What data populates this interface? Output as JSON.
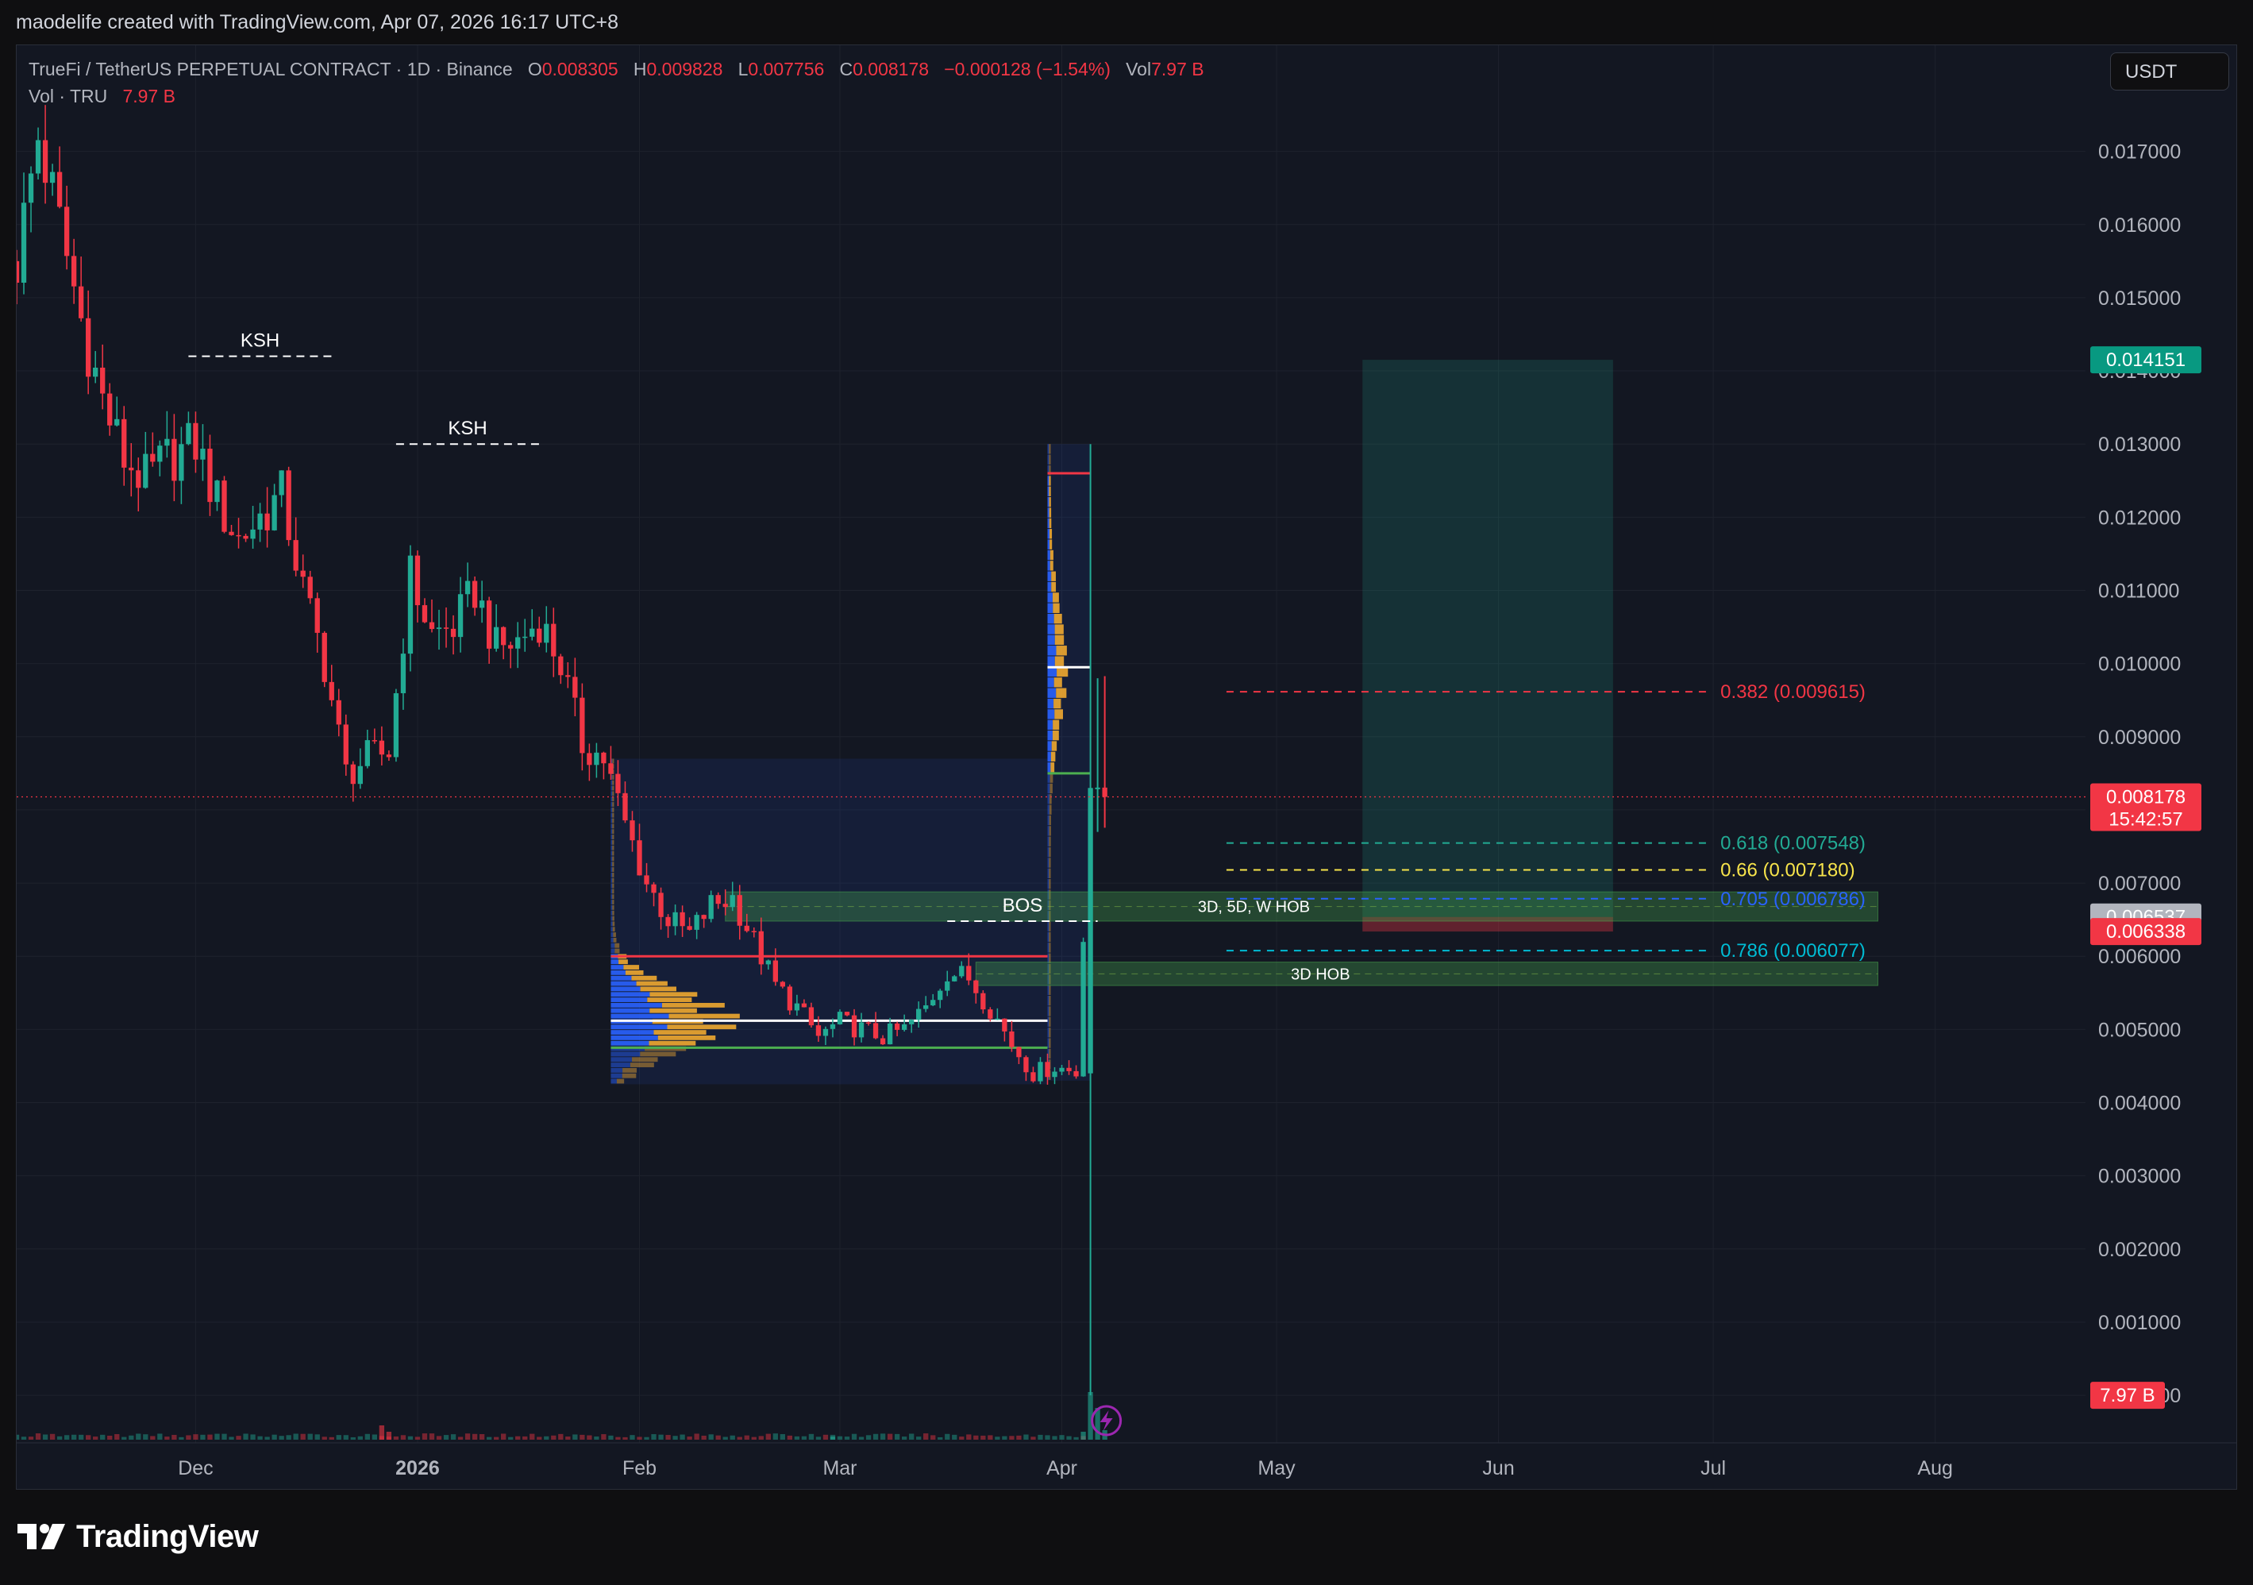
{
  "header": {
    "created_by": "maodelife created with TradingView.com, Apr 07, 2026 16:17 UTC+8"
  },
  "legend": {
    "symbol": "TrueFi / TetherUS PERPETUAL CONTRACT · 1D · Binance",
    "o_label": "O",
    "o_value": "0.008305",
    "h_label": "H",
    "h_value": "0.009828",
    "l_label": "L",
    "l_value": "0.007756",
    "c_label": "C",
    "c_value": "0.008178",
    "change": "−0.000128 (−1.54%)",
    "vol_label": "Vol",
    "vol_value": "7.97 B",
    "vol_series": "Vol · TRU",
    "vol_series_value": "7.97 B"
  },
  "currency_button": "USDT",
  "brand": {
    "name": "TradingView"
  },
  "colors": {
    "background": "#131722",
    "up": "#22ab94",
    "down": "#f23645",
    "grid": "#1e222d",
    "fib_382": "#f23645",
    "fib_618": "#22ab94",
    "fib_66": "#f7e44b",
    "fib_705": "#2962ff",
    "fib_786": "#00bcd4"
  },
  "chart_data": {
    "type": "candlestick",
    "symbol": "TrueFi / TetherUS PERPETUAL CONTRACT",
    "interval": "1D",
    "exchange": "Binance",
    "y_axis_ticks": [
      "0.017000",
      "0.016000",
      "0.015000",
      "0.014000",
      "0.013000",
      "0.012000",
      "0.011000",
      "0.010000",
      "0.009000",
      "0.008000",
      "0.007000",
      "0.006000",
      "0.005000",
      "0.004000",
      "0.003000",
      "0.002000",
      "0.001000",
      "0.000000"
    ],
    "y_axis_tick_values": [
      0.017,
      0.016,
      0.015,
      0.014,
      0.013,
      0.012,
      0.011,
      0.01,
      0.009,
      0.008,
      0.007,
      0.006,
      0.005,
      0.004,
      0.003,
      0.002,
      0.001,
      0.0
    ],
    "ylim": [
      -0.00065,
      0.01845
    ],
    "x_axis_ticks": [
      {
        "label": "Dec",
        "date": "2025-12-01"
      },
      {
        "label": "2026",
        "date": "2026-01-01"
      },
      {
        "label": "Feb",
        "date": "2026-02-01"
      },
      {
        "label": "Mar",
        "date": "2026-03-01"
      },
      {
        "label": "Apr",
        "date": "2026-04-01"
      },
      {
        "label": "May",
        "date": "2026-05-01"
      },
      {
        "label": "Jun",
        "date": "2026-06-01"
      },
      {
        "label": "Jul",
        "date": "2026-07-01"
      },
      {
        "label": "Aug",
        "date": "2026-08-01"
      }
    ],
    "xlim": [
      "2025-11-06",
      "2026-08-22"
    ],
    "price_path_close": [
      [
        "2025-11-06",
        0.0155
      ],
      [
        "2025-11-09",
        0.0172
      ],
      [
        "2025-11-12",
        0.016
      ],
      [
        "2025-11-15",
        0.0147
      ],
      [
        "2025-11-18",
        0.0136
      ],
      [
        "2025-11-21",
        0.0128
      ],
      [
        "2025-11-24",
        0.0125
      ],
      [
        "2025-11-27",
        0.0128
      ],
      [
        "2025-12-01",
        0.013
      ],
      [
        "2025-12-04",
        0.0122
      ],
      [
        "2025-12-07",
        0.0117
      ],
      [
        "2025-12-10",
        0.012
      ],
      [
        "2025-12-13",
        0.0123
      ],
      [
        "2025-12-16",
        0.011
      ],
      [
        "2025-12-19",
        0.01
      ],
      [
        "2025-12-22",
        0.0085
      ],
      [
        "2025-12-25",
        0.0087
      ],
      [
        "2025-12-28",
        0.0088
      ],
      [
        "2025-12-31",
        0.0112
      ],
      [
        "2026-01-03",
        0.0104
      ],
      [
        "2026-01-06",
        0.0105
      ],
      [
        "2026-01-09",
        0.011
      ],
      [
        "2026-01-12",
        0.0102
      ],
      [
        "2026-01-15",
        0.0103
      ],
      [
        "2026-01-18",
        0.0106
      ],
      [
        "2026-01-21",
        0.01
      ],
      [
        "2026-01-24",
        0.0089
      ],
      [
        "2026-01-27",
        0.0087
      ],
      [
        "2026-01-30",
        0.0078
      ],
      [
        "2026-02-02",
        0.007
      ],
      [
        "2026-02-05",
        0.0065
      ],
      [
        "2026-02-08",
        0.0063
      ],
      [
        "2026-02-11",
        0.0067
      ],
      [
        "2026-02-14",
        0.0068
      ],
      [
        "2026-02-17",
        0.0062
      ],
      [
        "2026-02-20",
        0.0056
      ],
      [
        "2026-02-23",
        0.0053
      ],
      [
        "2026-02-26",
        0.0049
      ],
      [
        "2026-03-01",
        0.0051
      ],
      [
        "2026-03-04",
        0.005
      ],
      [
        "2026-03-07",
        0.0049
      ],
      [
        "2026-03-10",
        0.005
      ],
      [
        "2026-03-13",
        0.0053
      ],
      [
        "2026-03-16",
        0.0058
      ],
      [
        "2026-03-19",
        0.0057
      ],
      [
        "2026-03-22",
        0.0053
      ],
      [
        "2026-03-25",
        0.0048
      ],
      [
        "2026-03-28",
        0.0044
      ],
      [
        "2026-03-31",
        0.0045
      ],
      [
        "2026-04-03",
        0.0044
      ],
      [
        "2026-04-05",
        0.0083
      ],
      [
        "2026-04-07",
        0.008178
      ]
    ],
    "last_candle": {
      "date": "2026-04-07",
      "open": 0.008305,
      "high": 0.009828,
      "low": 0.007756,
      "close": 0.008178,
      "change": -0.000128,
      "change_pct": -1.54
    },
    "annotations": [
      {
        "type": "level",
        "label": "KSH",
        "price": 0.0142,
        "from": "2025-11-30",
        "to": "2025-12-20",
        "style": "dashed"
      },
      {
        "type": "level",
        "label": "KSH",
        "price": 0.013,
        "from": "2025-12-29",
        "to": "2026-01-18",
        "style": "dashed"
      },
      {
        "type": "level",
        "label": "BOS",
        "price": 0.00648,
        "from": "2026-03-16",
        "to": "2026-04-06",
        "style": "dashed"
      },
      {
        "type": "zone",
        "label": "3D, 5D, W HOB",
        "from": "2026-02-13",
        "to": "2026-07-24",
        "top": 0.00688,
        "bottom": 0.00648
      },
      {
        "type": "zone",
        "label": "3D HOB",
        "from": "2026-03-20",
        "to": "2026-07-24",
        "top": 0.00592,
        "bottom": 0.0056
      },
      {
        "type": "volume_profile",
        "from": "2026-01-28",
        "to": "2026-03-30",
        "top": 0.0087,
        "bottom": 0.00425,
        "vah": 0.006,
        "poc": 0.00512,
        "val": 0.00475
      },
      {
        "type": "volume_profile",
        "from": "2026-03-30",
        "to": "2026-04-05",
        "top": 0.013,
        "bottom": 0.0043,
        "vah": 0.0126,
        "poc": 0.00995,
        "val": 0.0085
      }
    ],
    "fib_levels": [
      {
        "ratio": "0.382",
        "price": 0.009615,
        "label": "0.382 (0.009615)"
      },
      {
        "ratio": "0.618",
        "price": 0.007548,
        "label": "0.618 (0.007548)"
      },
      {
        "ratio": "0.66",
        "price": 0.00718,
        "label": "0.66 (0.007180)"
      },
      {
        "ratio": "0.705",
        "price": 0.006786,
        "label": "0.705 (0.006786)"
      },
      {
        "ratio": "0.786",
        "price": 0.006077,
        "label": "0.786 (0.006077)"
      }
    ],
    "fib_span": {
      "from": "2026-04-24",
      "to": "2026-07-24"
    },
    "long_position": {
      "from": "2026-05-13",
      "to": "2026-06-17",
      "entry": 0.006537,
      "target": 0.014151,
      "stop": 0.006338
    },
    "price_tags": [
      {
        "value": "0.014151",
        "price": 0.014151,
        "color": "#089981"
      },
      {
        "value": "0.008178",
        "sub": "15:42:57",
        "price": 0.008178,
        "color": "#f23645"
      },
      {
        "value": "0.006537",
        "price": 0.006537,
        "color": "#b2b5be"
      },
      {
        "value": "0.006338",
        "price": 0.006338,
        "color": "#f23645"
      },
      {
        "value": "7.97 B",
        "price": 0.0,
        "color": "#f23645"
      }
    ],
    "volume": {
      "label": "Vol · TRU",
      "last": "7.97 B",
      "spikes": [
        [
          "2025-12-27",
          0.9
        ],
        [
          "2025-12-28",
          0.5
        ],
        [
          "2026-02-28",
          0.2
        ],
        [
          "2026-04-04",
          0.5
        ],
        [
          "2026-04-05",
          3.0
        ],
        [
          "2026-04-06",
          2.0
        ],
        [
          "2026-04-07",
          0.6
        ]
      ]
    }
  }
}
